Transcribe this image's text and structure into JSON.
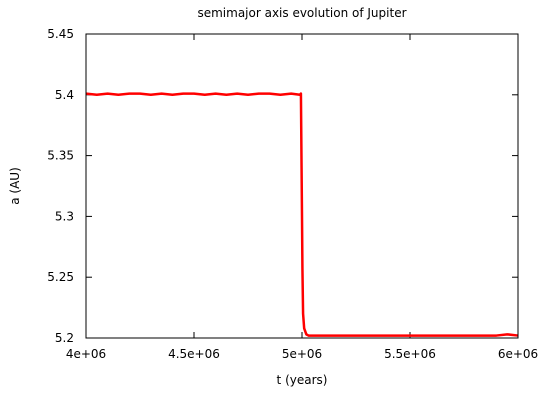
{
  "chart_data": {
    "type": "line",
    "title": "semimajor axis evolution of Jupiter",
    "xlabel": "t (years)",
    "ylabel": "a (AU)",
    "xlim": [
      4000000,
      6000000
    ],
    "ylim": [
      5.2,
      5.45
    ],
    "xticks": [
      4000000,
      4500000,
      5000000,
      5500000,
      6000000
    ],
    "xtick_labels": [
      "4e+06",
      "4.5e+06",
      "5e+06",
      "5.5e+06",
      "6e+06"
    ],
    "yticks": [
      5.2,
      5.25,
      5.3,
      5.35,
      5.4,
      5.45
    ],
    "ytick_labels": [
      "5.2",
      "5.25",
      "5.3",
      "5.35",
      "5.4",
      "5.45"
    ],
    "grid": false,
    "series": [
      {
        "color": "#ff0000",
        "x": [
          4000000,
          4050000,
          4100000,
          4150000,
          4200000,
          4250000,
          4300000,
          4350000,
          4400000,
          4450000,
          4500000,
          4550000,
          4600000,
          4650000,
          4700000,
          4750000,
          4800000,
          4850000,
          4900000,
          4950000,
          4990000,
          4995000,
          4998000,
          5000000,
          5002000,
          5005000,
          5010000,
          5020000,
          5030000,
          5050000,
          5100000,
          5150000,
          5200000,
          5300000,
          5400000,
          5500000,
          5600000,
          5700000,
          5800000,
          5900000,
          5950000,
          6000000
        ],
        "y": [
          5.401,
          5.4,
          5.401,
          5.4,
          5.401,
          5.401,
          5.4,
          5.401,
          5.4,
          5.401,
          5.401,
          5.4,
          5.401,
          5.4,
          5.401,
          5.4,
          5.401,
          5.401,
          5.4,
          5.401,
          5.4,
          5.401,
          5.34,
          5.3,
          5.257,
          5.22,
          5.208,
          5.203,
          5.202,
          5.202,
          5.202,
          5.202,
          5.202,
          5.202,
          5.202,
          5.202,
          5.202,
          5.202,
          5.202,
          5.202,
          5.203,
          5.202
        ]
      }
    ]
  }
}
